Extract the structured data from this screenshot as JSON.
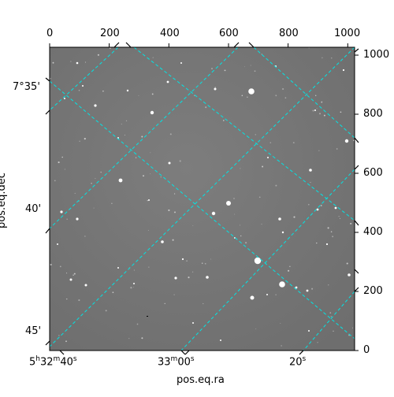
{
  "plot": {
    "xlabel": "pos.eq.ra",
    "ylabel": "pos.eq.dec",
    "top_ticks": [
      "0",
      "200",
      "400",
      "600",
      "800",
      "1000"
    ],
    "right_ticks": [
      "0",
      "200",
      "400",
      "600",
      "800",
      "1000"
    ],
    "ra_ticks": [
      {
        "h": "5",
        "m": "32",
        "s": "40",
        "mode": "full"
      },
      {
        "m": "33",
        "s": "00",
        "mode": "ms"
      },
      {
        "s": "20",
        "mode": "s"
      }
    ],
    "dec_ticks": [
      "7°35'",
      "40'",
      "45'"
    ],
    "pixel_range": [
      0,
      1023
    ],
    "grid_color": "#00e5e5",
    "image_background": "#7a7a7a"
  }
}
